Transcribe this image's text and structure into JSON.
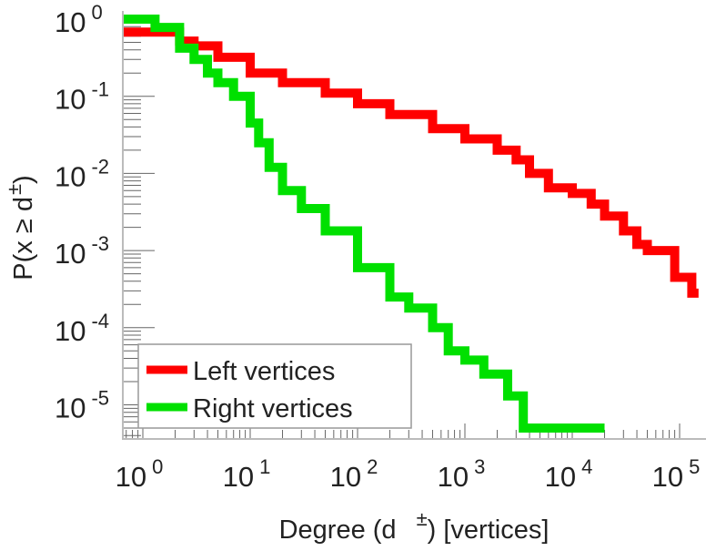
{
  "chart_data": {
    "type": "line",
    "title": "",
    "xlabel": "Degree (d ±) [vertices]",
    "xlabel_main": "Degree (d",
    "xlabel_sup": "±",
    "xlabel_tail": ") [vertices]",
    "ylabel_main": "P(x ≥ d",
    "ylabel_sup": "±",
    "ylabel_tail": ")",
    "xscale": "log",
    "yscale": "log",
    "xlim": [
      0.65,
      175000
    ],
    "ylim": [
      3.7e-06,
      1.2
    ],
    "xticks": [
      {
        "base": "10",
        "exp": "0",
        "value": 1
      },
      {
        "base": "10",
        "exp": "1",
        "value": 10
      },
      {
        "base": "10",
        "exp": "2",
        "value": 100
      },
      {
        "base": "10",
        "exp": "3",
        "value": 1000
      },
      {
        "base": "10",
        "exp": "4",
        "value": 10000
      },
      {
        "base": "10",
        "exp": "5",
        "value": 100000
      }
    ],
    "yticks": [
      {
        "base": "10",
        "exp": "0",
        "value": 1
      },
      {
        "base": "10",
        "exp": "-1",
        "value": 0.1
      },
      {
        "base": "10",
        "exp": "-2",
        "value": 0.01
      },
      {
        "base": "10",
        "exp": "-3",
        "value": 0.001
      },
      {
        "base": "10",
        "exp": "-4",
        "value": 0.0001
      },
      {
        "base": "10",
        "exp": "-5",
        "value": 1e-05
      }
    ],
    "legend_position": "bottom-left",
    "series": [
      {
        "name": "Left vertices",
        "color": "#ff0000",
        "x_end": 150000,
        "x": [
          0.65,
          2.2,
          3,
          5,
          10,
          20,
          50,
          100,
          200,
          500,
          1000,
          2000,
          3000,
          4000,
          6000,
          10000,
          15000,
          20000,
          30000,
          40000,
          50000,
          90000,
          130000
        ],
        "y": [
          0.68,
          0.52,
          0.45,
          0.32,
          0.2,
          0.15,
          0.11,
          0.08,
          0.058,
          0.038,
          0.028,
          0.02,
          0.015,
          0.01,
          0.0065,
          0.0055,
          0.004,
          0.0028,
          0.0018,
          0.0012,
          0.001,
          0.00045,
          0.00028
        ]
      },
      {
        "name": "Right vertices",
        "color": "#00e000",
        "x_end": 20000,
        "x": [
          0.65,
          1.3,
          2.2,
          3,
          4,
          5,
          7,
          10,
          12,
          15,
          20,
          30,
          50,
          100,
          200,
          300,
          500,
          700,
          1000,
          1500,
          2500,
          3500
        ],
        "y": [
          1.0,
          0.78,
          0.42,
          0.3,
          0.2,
          0.15,
          0.1,
          0.045,
          0.025,
          0.012,
          0.006,
          0.0035,
          0.0018,
          0.0006,
          0.00025,
          0.00018,
          0.0001,
          5e-05,
          3.8e-05,
          2.5e-05,
          1.3e-05,
          5e-06
        ]
      }
    ]
  }
}
